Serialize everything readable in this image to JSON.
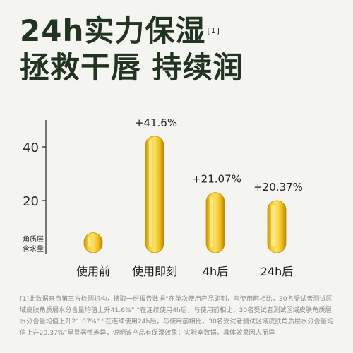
{
  "headline": {
    "line1": "24h实力保湿",
    "footnote_mark": "[1]",
    "line2": "拯救干唇 持续润"
  },
  "colors": {
    "background": "#f4f4f1",
    "headline": "#223322",
    "capsule_fill": "#f1c21b",
    "capsule_edge": "#c58f0a",
    "disclaimer": "#8a8a8a"
  },
  "chart_data": {
    "type": "bar",
    "title": "",
    "ylabel": "角质层含水量",
    "ylabel_lines": [
      "角质层",
      "含水量"
    ],
    "xlabel": "",
    "categories": [
      "使用前",
      "使用即刻",
      "4h后",
      "24h后"
    ],
    "values": [
      8,
      44,
      23,
      20
    ],
    "data_labels": [
      "",
      "+41.6%",
      "+21.07%",
      "+20.37%"
    ],
    "yticks": [
      20,
      40
    ],
    "ylim": [
      0,
      50
    ],
    "grid": false,
    "legend": "none"
  },
  "disclaimer": "[1]此数据来自第三方检测机构，摘取一份报告数据“在单次使用产品即刻，与使用前相比，30名受试者测试区域皮肤角质层水分含量均值上升41.6%” “在连续使用4h后，与使用前相比，30名受试者测试区域皮肤角质层水分含量均值上升21.07%” “在连续使用24h后，与使用前相比，30名受试者测试区域皮肤角质层水分含量均值上升20.37%”呈显著性差异，说明该产品有保湿效果；实验室数据，具体效果因人而异"
}
